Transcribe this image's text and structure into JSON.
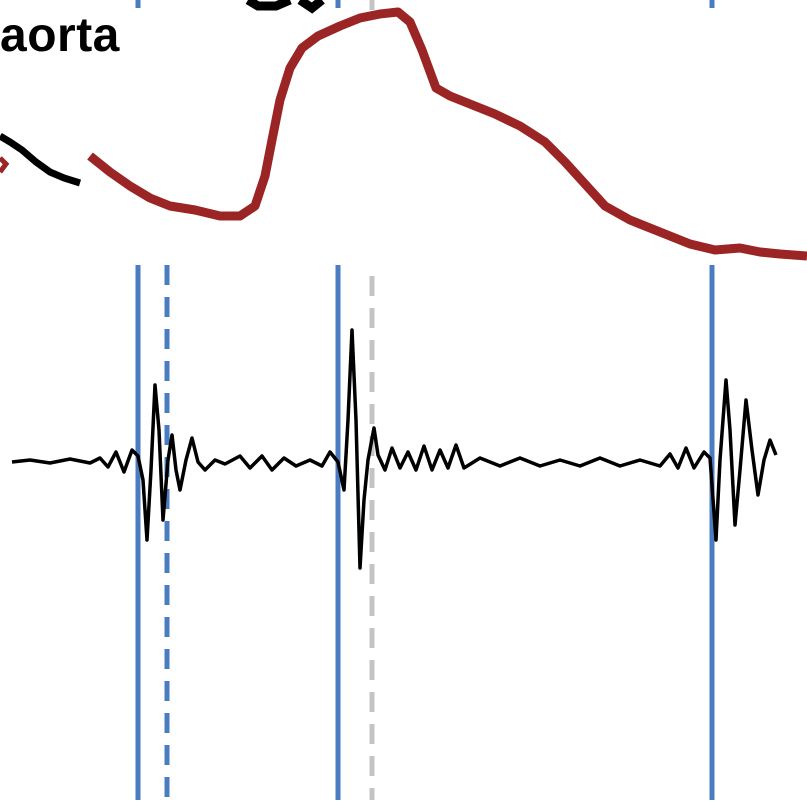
{
  "label": "aorta",
  "colors": {
    "background": "#ffffff",
    "pressure_trace": "#9b2424",
    "prior_trace": "#000000",
    "ecg_trace": "#000000",
    "marker_solid": "#4a7cc2",
    "marker_dashed_blue": "#4a7cc2",
    "marker_dashed_gray": "#c4c4c4"
  }
}
